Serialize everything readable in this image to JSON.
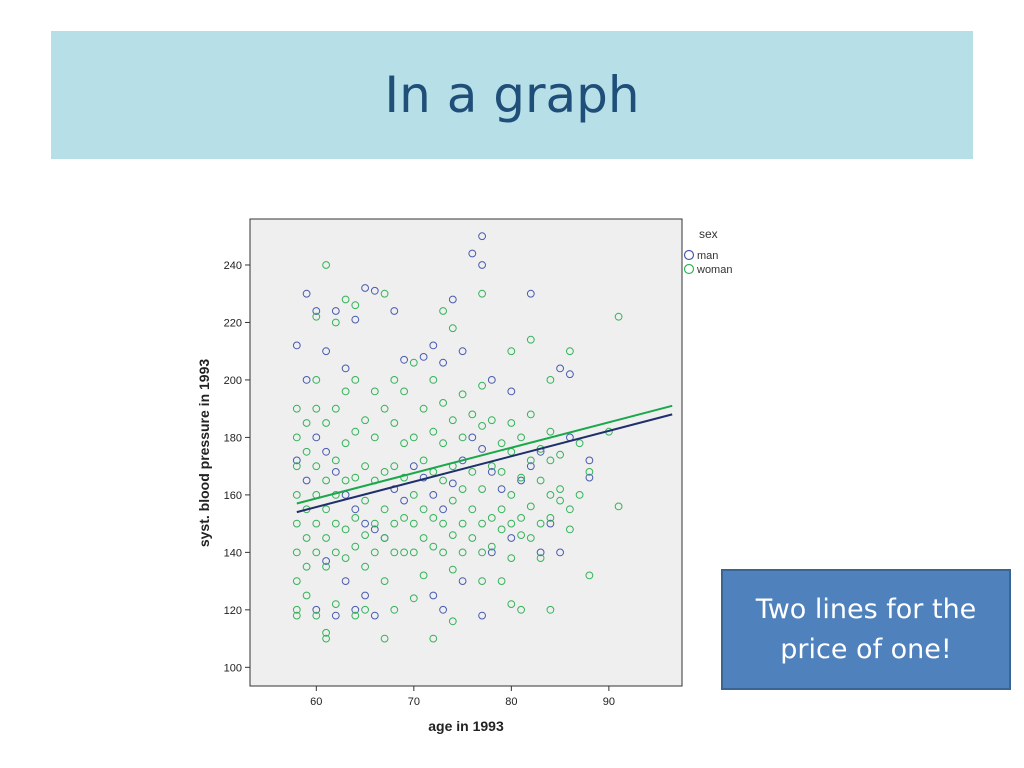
{
  "slide": {
    "title": "In a graph",
    "callout": "Two lines for the price of one!"
  },
  "colors": {
    "title_bg": "#b7dfe7",
    "title_text": "#1f4e79",
    "man": "#4a5bb0",
    "woman": "#35b35a",
    "man_line": "#1e2f6b",
    "woman_line": "#1aa84a",
    "plot_bg": "#efefef",
    "callout_bg": "#4f81bd"
  },
  "chart_data": {
    "type": "scatter",
    "xlabel": "age in 1993",
    "ylabel": "syst. blood pressure in 1993",
    "xlim": [
      53.2,
      97.5
    ],
    "ylim": [
      93.5,
      256
    ],
    "xticks": [
      60,
      70,
      80,
      90
    ],
    "yticks": [
      100,
      120,
      140,
      160,
      180,
      200,
      220,
      240
    ],
    "grid": false,
    "legend": {
      "title": "sex",
      "position": "right"
    },
    "series": [
      {
        "name": "man",
        "marker": "open-circle",
        "points": [
          [
            58,
            212
          ],
          [
            59,
            230
          ],
          [
            59,
            200
          ],
          [
            60,
            224
          ],
          [
            61,
            210
          ],
          [
            62,
            224
          ],
          [
            63,
            204
          ],
          [
            64,
            221
          ],
          [
            65,
            232
          ],
          [
            66,
            231
          ],
          [
            68,
            224
          ],
          [
            69,
            207
          ],
          [
            71,
            208
          ],
          [
            72,
            212
          ],
          [
            73,
            206
          ],
          [
            74,
            228
          ],
          [
            75,
            210
          ],
          [
            76,
            244
          ],
          [
            77,
            250
          ],
          [
            77,
            240
          ],
          [
            78,
            200
          ],
          [
            80,
            196
          ],
          [
            82,
            230
          ],
          [
            85,
            204
          ],
          [
            86,
            202
          ],
          [
            88,
            172
          ],
          [
            88,
            166
          ],
          [
            83,
            175
          ],
          [
            84,
            150
          ],
          [
            80,
            145
          ],
          [
            78,
            140
          ],
          [
            77,
            118
          ],
          [
            75,
            130
          ],
          [
            73,
            120
          ],
          [
            72,
            125
          ],
          [
            66,
            118
          ],
          [
            64,
            120
          ],
          [
            62,
            118
          ],
          [
            60,
            120
          ],
          [
            61,
            137
          ],
          [
            63,
            130
          ],
          [
            65,
            125
          ],
          [
            58,
            172
          ],
          [
            59,
            165
          ],
          [
            60,
            180
          ],
          [
            61,
            175
          ],
          [
            62,
            168
          ],
          [
            63,
            160
          ],
          [
            64,
            155
          ],
          [
            65,
            150
          ],
          [
            66,
            148
          ],
          [
            67,
            145
          ],
          [
            68,
            162
          ],
          [
            69,
            158
          ],
          [
            70,
            170
          ],
          [
            71,
            166
          ],
          [
            72,
            160
          ],
          [
            73,
            155
          ],
          [
            74,
            164
          ],
          [
            75,
            172
          ],
          [
            76,
            180
          ],
          [
            77,
            176
          ],
          [
            78,
            168
          ],
          [
            79,
            162
          ],
          [
            81,
            165
          ],
          [
            82,
            170
          ],
          [
            83,
            140
          ],
          [
            85,
            140
          ],
          [
            86,
            180
          ]
        ]
      },
      {
        "name": "woman",
        "marker": "open-circle",
        "points": [
          [
            61,
            240
          ],
          [
            60,
            222
          ],
          [
            62,
            220
          ],
          [
            63,
            228
          ],
          [
            64,
            226
          ],
          [
            67,
            230
          ],
          [
            73,
            224
          ],
          [
            74,
            218
          ],
          [
            77,
            230
          ],
          [
            80,
            210
          ],
          [
            82,
            214
          ],
          [
            84,
            200
          ],
          [
            86,
            210
          ],
          [
            91,
            222
          ],
          [
            90,
            182
          ],
          [
            88,
            168
          ],
          [
            87,
            178
          ],
          [
            85,
            162
          ],
          [
            86,
            148
          ],
          [
            88,
            132
          ],
          [
            91,
            156
          ],
          [
            84,
            120
          ],
          [
            81,
            120
          ],
          [
            80,
            122
          ],
          [
            79,
            130
          ],
          [
            77,
            130
          ],
          [
            74,
            116
          ],
          [
            72,
            110
          ],
          [
            67,
            110
          ],
          [
            61,
            110
          ],
          [
            61,
            112
          ],
          [
            60,
            118
          ],
          [
            58,
            120
          ],
          [
            58,
            118
          ],
          [
            59,
            125
          ],
          [
            62,
            122
          ],
          [
            64,
            118
          ],
          [
            65,
            120
          ],
          [
            68,
            120
          ],
          [
            70,
            124
          ],
          [
            58,
            150
          ],
          [
            58,
            160
          ],
          [
            58,
            170
          ],
          [
            58,
            180
          ],
          [
            58,
            190
          ],
          [
            58,
            140
          ],
          [
            58,
            130
          ],
          [
            59,
            145
          ],
          [
            59,
            155
          ],
          [
            59,
            175
          ],
          [
            59,
            185
          ],
          [
            59,
            135
          ],
          [
            60,
            150
          ],
          [
            60,
            160
          ],
          [
            60,
            170
          ],
          [
            60,
            140
          ],
          [
            60,
            200
          ],
          [
            60,
            190
          ],
          [
            61,
            155
          ],
          [
            61,
            165
          ],
          [
            61,
            145
          ],
          [
            61,
            185
          ],
          [
            61,
            135
          ],
          [
            62,
            150
          ],
          [
            62,
            160
          ],
          [
            62,
            172
          ],
          [
            62,
            190
          ],
          [
            62,
            140
          ],
          [
            63,
            148
          ],
          [
            63,
            165
          ],
          [
            63,
            178
          ],
          [
            63,
            138
          ],
          [
            63,
            196
          ],
          [
            64,
            152
          ],
          [
            64,
            166
          ],
          [
            64,
            182
          ],
          [
            64,
            142
          ],
          [
            64,
            200
          ],
          [
            65,
            158
          ],
          [
            65,
            170
          ],
          [
            65,
            186
          ],
          [
            65,
            146
          ],
          [
            65,
            135
          ],
          [
            66,
            150
          ],
          [
            66,
            165
          ],
          [
            66,
            180
          ],
          [
            66,
            140
          ],
          [
            66,
            196
          ],
          [
            67,
            155
          ],
          [
            67,
            168
          ],
          [
            67,
            190
          ],
          [
            67,
            145
          ],
          [
            67,
            130
          ],
          [
            68,
            150
          ],
          [
            68,
            170
          ],
          [
            68,
            185
          ],
          [
            68,
            140
          ],
          [
            68,
            200
          ],
          [
            69,
            152
          ],
          [
            69,
            166
          ],
          [
            69,
            178
          ],
          [
            69,
            140
          ],
          [
            69,
            196
          ],
          [
            70,
            150
          ],
          [
            70,
            160
          ],
          [
            70,
            180
          ],
          [
            70,
            140
          ],
          [
            70,
            206
          ],
          [
            71,
            155
          ],
          [
            71,
            172
          ],
          [
            71,
            190
          ],
          [
            71,
            145
          ],
          [
            71,
            132
          ],
          [
            72,
            152
          ],
          [
            72,
            168
          ],
          [
            72,
            182
          ],
          [
            72,
            142
          ],
          [
            72,
            200
          ],
          [
            73,
            150
          ],
          [
            73,
            165
          ],
          [
            73,
            178
          ],
          [
            73,
            140
          ],
          [
            73,
            192
          ],
          [
            74,
            158
          ],
          [
            74,
            170
          ],
          [
            74,
            186
          ],
          [
            74,
            146
          ],
          [
            74,
            134
          ],
          [
            75,
            150
          ],
          [
            75,
            162
          ],
          [
            75,
            180
          ],
          [
            75,
            140
          ],
          [
            75,
            195
          ],
          [
            76,
            155
          ],
          [
            76,
            168
          ],
          [
            76,
            188
          ],
          [
            76,
            145
          ],
          [
            77,
            150
          ],
          [
            77,
            162
          ],
          [
            77,
            184
          ],
          [
            77,
            140
          ],
          [
            77,
            198
          ],
          [
            78,
            152
          ],
          [
            78,
            170
          ],
          [
            78,
            186
          ],
          [
            78,
            142
          ],
          [
            79,
            155
          ],
          [
            79,
            168
          ],
          [
            79,
            178
          ],
          [
            79,
            148
          ],
          [
            80,
            150
          ],
          [
            80,
            160
          ],
          [
            80,
            175
          ],
          [
            80,
            185
          ],
          [
            80,
            138
          ],
          [
            81,
            152
          ],
          [
            81,
            166
          ],
          [
            81,
            180
          ],
          [
            81,
            146
          ],
          [
            82,
            156
          ],
          [
            82,
            172
          ],
          [
            82,
            188
          ],
          [
            82,
            145
          ],
          [
            83,
            150
          ],
          [
            83,
            165
          ],
          [
            83,
            176
          ],
          [
            83,
            138
          ],
          [
            84,
            160
          ],
          [
            84,
            172
          ],
          [
            84,
            182
          ],
          [
            84,
            152
          ],
          [
            85,
            158
          ],
          [
            85,
            174
          ],
          [
            86,
            155
          ],
          [
            87,
            160
          ]
        ]
      }
    ],
    "fit_lines": [
      {
        "name": "man",
        "x": [
          58,
          96.5
        ],
        "y": [
          154,
          188
        ]
      },
      {
        "name": "woman",
        "x": [
          58,
          96.5
        ],
        "y": [
          157,
          191
        ]
      }
    ]
  }
}
